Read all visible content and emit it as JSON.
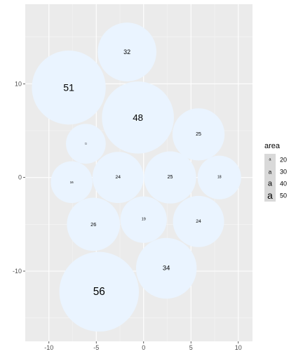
{
  "chart_data": {
    "type": "scatter",
    "title": "",
    "xlabel": "",
    "ylabel": "",
    "xlim": [
      -12.5,
      11.5
    ],
    "ylim": [
      -17.5,
      18.5
    ],
    "x_ticks": [
      -10,
      -5,
      0,
      5,
      10
    ],
    "x_tick_labels": [
      "-10",
      "-5",
      "0",
      "5",
      "10"
    ],
    "y_ticks": [
      -10,
      0,
      10
    ],
    "y_tick_labels": [
      "-10",
      "0",
      "10"
    ],
    "grid": true,
    "legend_position": "right",
    "size_variable": "area",
    "fill_color": "#eaf4ff",
    "bubbles": [
      {
        "label": "32",
        "area": 32,
        "x": -1.75,
        "y": 13.4,
        "r": 3.1
      },
      {
        "label": "51",
        "area": 51,
        "x": -7.9,
        "y": 9.6,
        "r": 3.9
      },
      {
        "label": "48",
        "area": 48,
        "x": -0.6,
        "y": 6.4,
        "r": 3.8
      },
      {
        "label": "25",
        "area": 25,
        "x": 5.8,
        "y": 4.6,
        "r": 2.75
      },
      {
        "label": "11",
        "area": 11,
        "x": -6.1,
        "y": 3.6,
        "r": 2.1
      },
      {
        "label": "16",
        "area": 16,
        "x": -7.6,
        "y": -0.5,
        "r": 2.2
      },
      {
        "label": "24",
        "area": 24,
        "x": -2.7,
        "y": 0.0,
        "r": 2.7
      },
      {
        "label": "25",
        "area": 25,
        "x": 2.8,
        "y": 0.0,
        "r": 2.75
      },
      {
        "label": "18",
        "area": 18,
        "x": 8.0,
        "y": 0.0,
        "r": 2.3
      },
      {
        "label": "26",
        "area": 26,
        "x": -5.3,
        "y": -5.0,
        "r": 2.8
      },
      {
        "label": "19",
        "area": 19,
        "x": 0.0,
        "y": -4.5,
        "r": 2.45
      },
      {
        "label": "24",
        "area": 24,
        "x": 5.8,
        "y": -4.7,
        "r": 2.7
      },
      {
        "label": "34",
        "area": 34,
        "x": 2.4,
        "y": -9.7,
        "r": 3.2
      },
      {
        "label": "56",
        "area": 56,
        "x": -4.7,
        "y": -12.2,
        "r": 4.2
      }
    ]
  },
  "legend": {
    "title": "area",
    "items": [
      {
        "symbol": "a",
        "label": "20",
        "value": 20
      },
      {
        "symbol": "a",
        "label": "30",
        "value": 30
      },
      {
        "symbol": "a",
        "label": "40",
        "value": 40
      },
      {
        "symbol": "a",
        "label": "50",
        "value": 50
      }
    ],
    "key_background": "#d9d9d9"
  },
  "colors": {
    "panel_background": "#ebebeb",
    "grid_major": "#ffffff",
    "grid_minor": "#f5f5f5",
    "tick_text": "#4d4d4d"
  }
}
